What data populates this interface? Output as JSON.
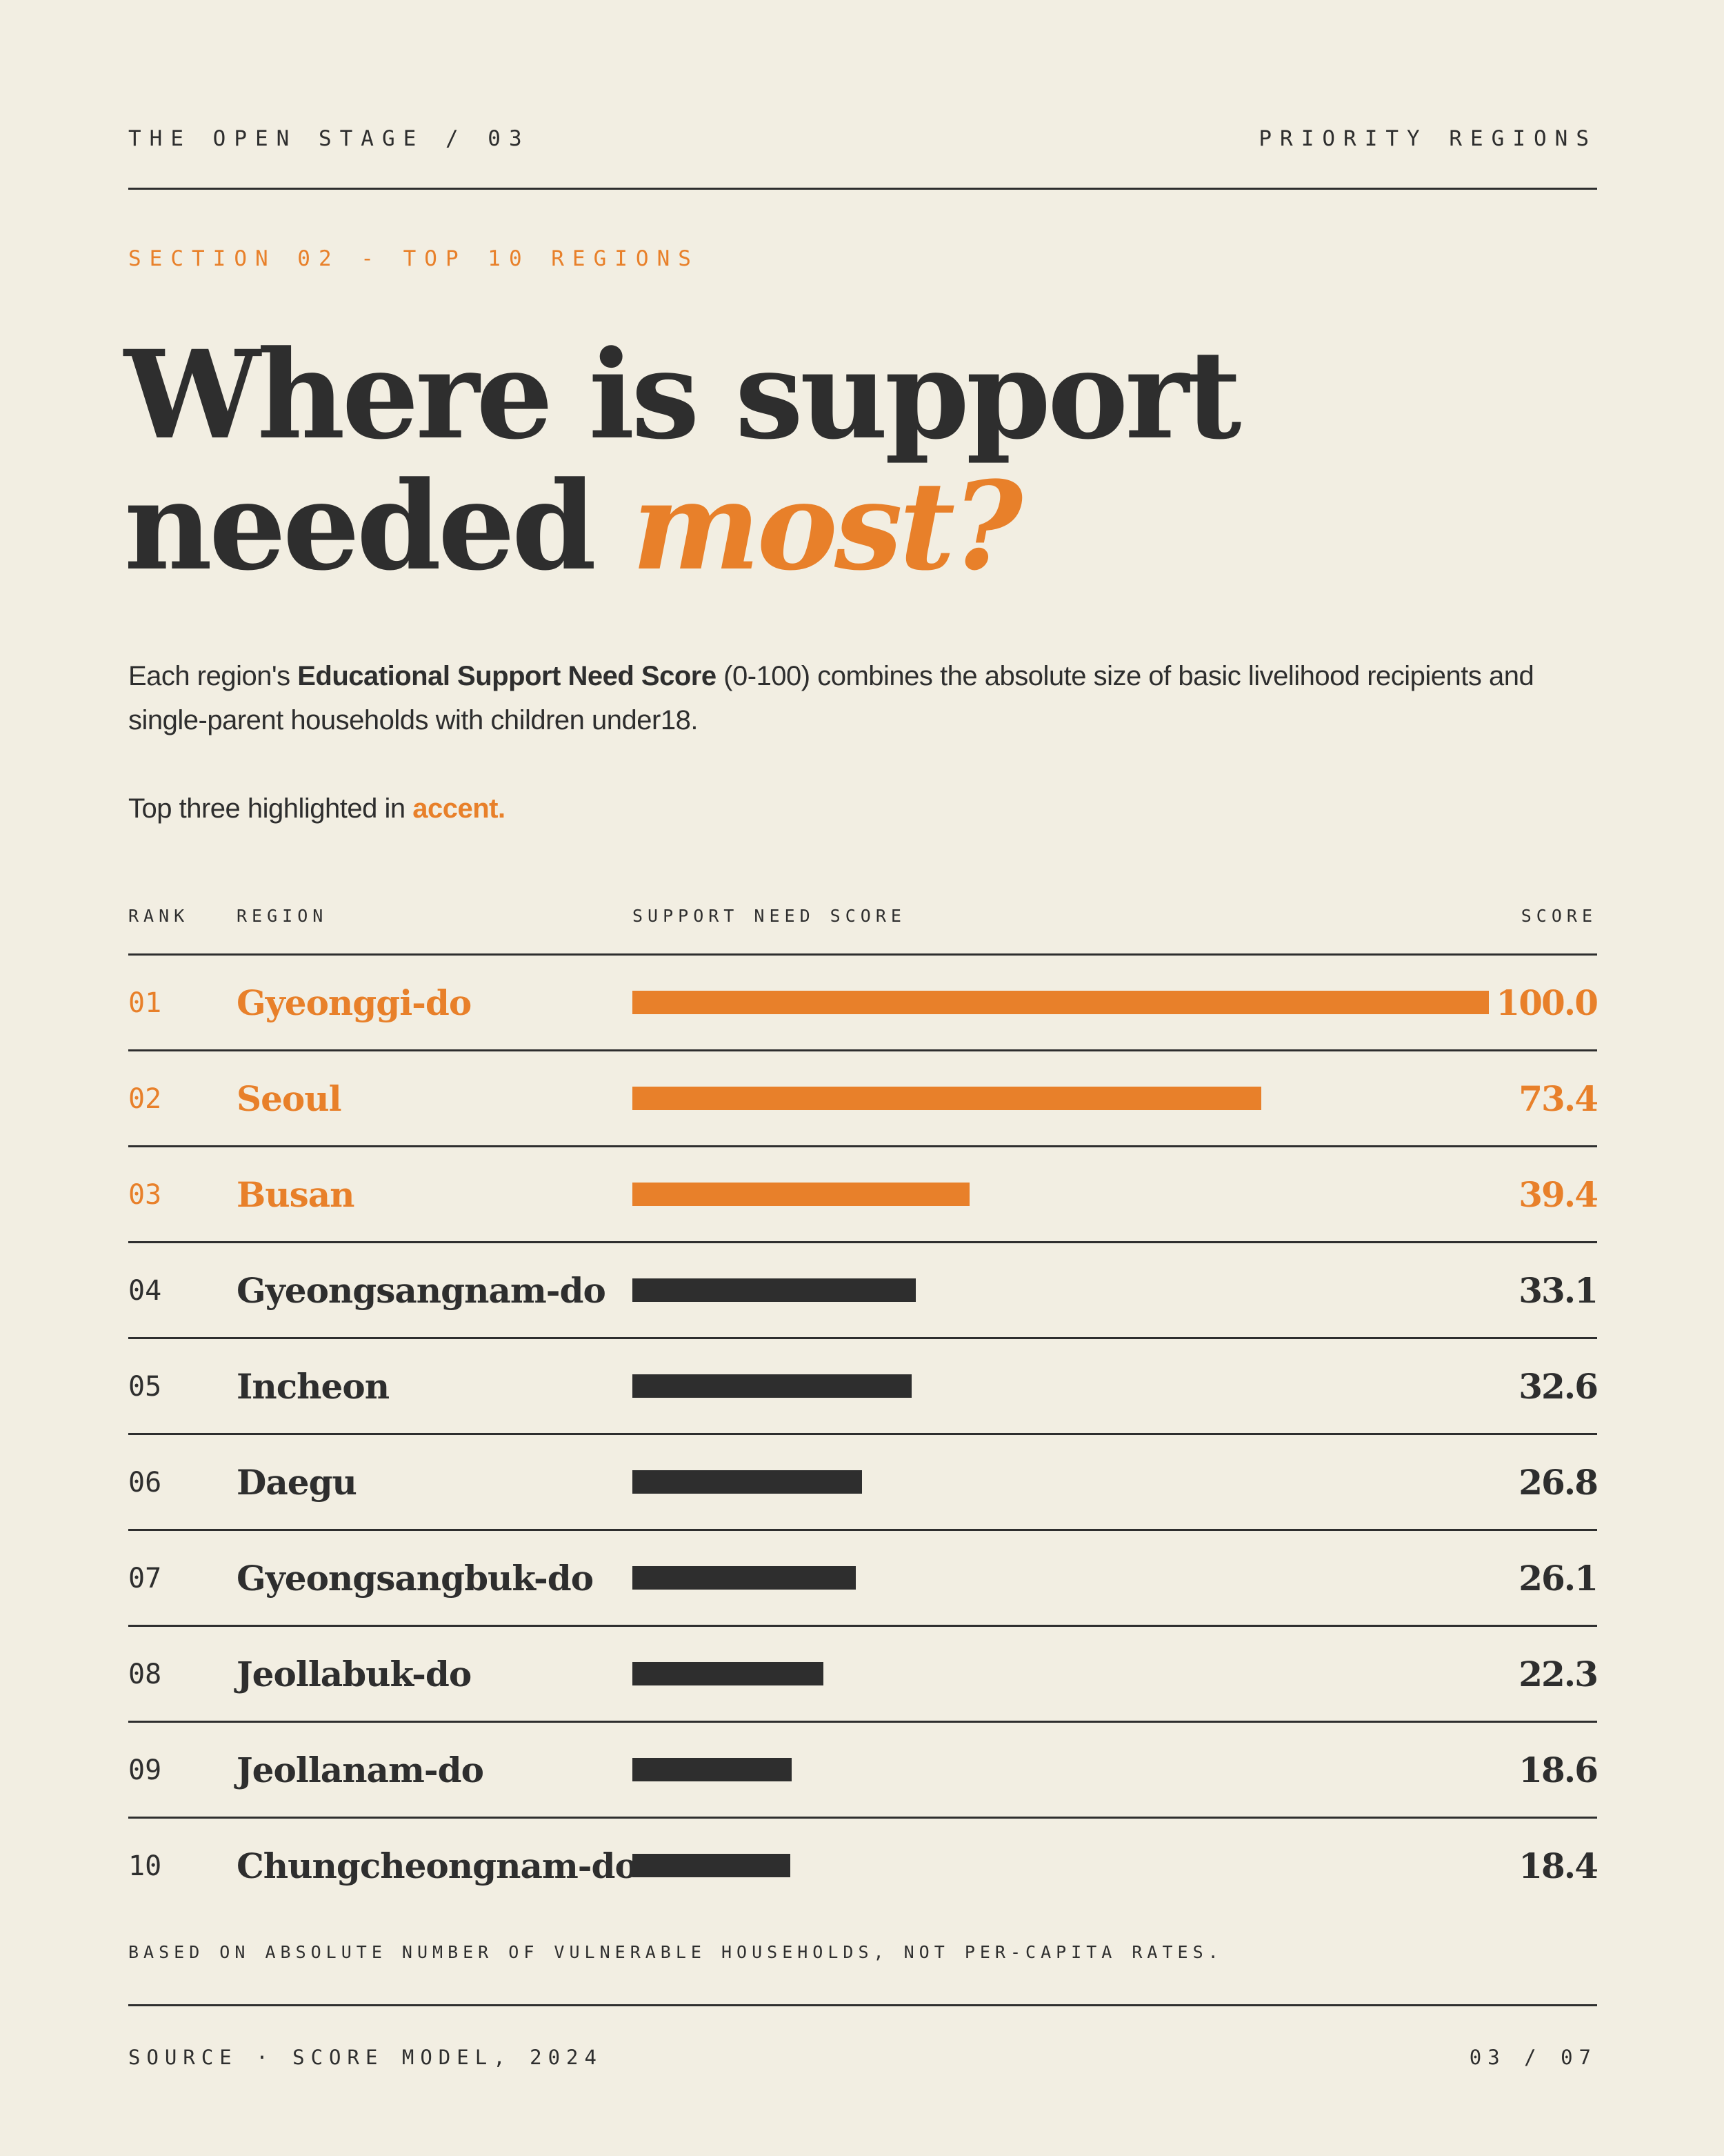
{
  "header": {
    "left": "THE OPEN STAGE / 03",
    "right": "PRIORITY REGIONS"
  },
  "section_label": "SECTION 02 - TOP 10 REGIONS",
  "headline": {
    "line1": "Where is support",
    "line2_plain": "needed",
    "line2_accent": "most?"
  },
  "intro": {
    "before": "Each region's ",
    "bold": "Educational Support Need Score",
    "after": " (0-100) combines the absolute size of basic livelihood recipients and single-parent households with children under18."
  },
  "highlight_note": {
    "before": "Top three highlighted in ",
    "accent": "accent."
  },
  "columns": {
    "rank": "RANK",
    "region": "REGION",
    "bar": "SUPPORT NEED SCORE",
    "score": "SCORE"
  },
  "colors": {
    "accent": "#e8802a",
    "ink": "#2e2e2e",
    "background": "#f2eee2"
  },
  "chart_data": {
    "type": "bar",
    "orientation": "horizontal",
    "xlim": [
      0,
      100
    ],
    "highlight_top": 3,
    "rows": [
      {
        "rank": "01",
        "region": "Gyeonggi-do",
        "value": 100.0,
        "label": "100.0"
      },
      {
        "rank": "02",
        "region": "Seoul",
        "value": 73.4,
        "label": "73.4"
      },
      {
        "rank": "03",
        "region": "Busan",
        "value": 39.4,
        "label": "39.4"
      },
      {
        "rank": "04",
        "region": "Gyeongsangnam-do",
        "value": 33.1,
        "label": "33.1"
      },
      {
        "rank": "05",
        "region": "Incheon",
        "value": 32.6,
        "label": "32.6"
      },
      {
        "rank": "06",
        "region": "Daegu",
        "value": 26.8,
        "label": "26.8"
      },
      {
        "rank": "07",
        "region": "Gyeongsangbuk-do",
        "value": 26.1,
        "label": "26.1"
      },
      {
        "rank": "08",
        "region": "Jeollabuk-do",
        "value": 22.3,
        "label": "22.3"
      },
      {
        "rank": "09",
        "region": "Jeollanam-do",
        "value": 18.6,
        "label": "18.6"
      },
      {
        "rank": "10",
        "region": "Chungcheongnam-do",
        "value": 18.4,
        "label": "18.4"
      }
    ]
  },
  "footnote": "BASED ON ABSOLUTE NUMBER OF VULNERABLE HOUSEHOLDS, NOT PER-CAPITA RATES.",
  "footer": {
    "source": "SOURCE · SCORE MODEL, 2024",
    "page": "03 / 07"
  }
}
